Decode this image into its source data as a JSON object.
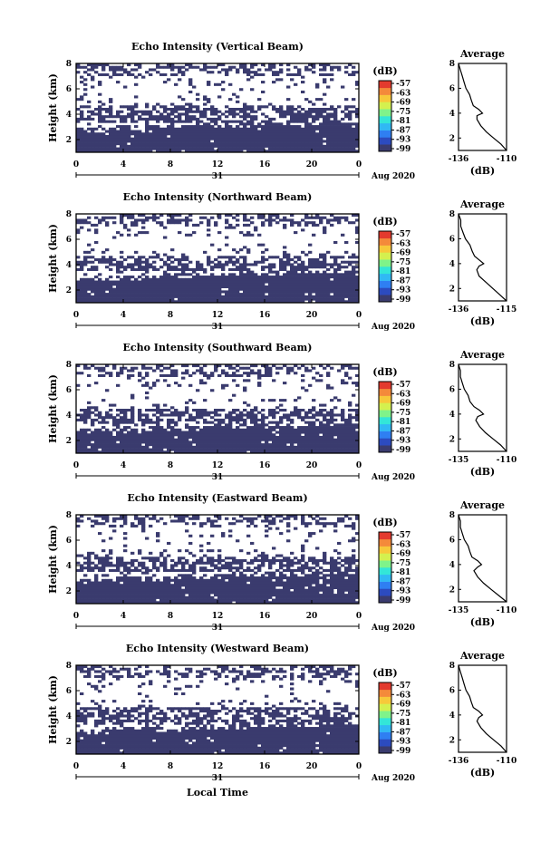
{
  "colors": {
    "echo_fill": "#3a3b6e",
    "background": "#ffffff",
    "colorbar": [
      "#3a3b6e",
      "#2c4bbf",
      "#2f7ff2",
      "#30b9f4",
      "#33e6d8",
      "#7ff38a",
      "#d4f04f",
      "#f7c93a",
      "#f48a3a",
      "#e33a2e"
    ]
  },
  "shared": {
    "colorbar_unit": "(dB)",
    "colorbar_ticks": [
      "-57",
      "-63",
      "-69",
      "-75",
      "-81",
      "-87",
      "-93",
      "-99"
    ],
    "ylabel": "Height (km)",
    "y_ticks": [
      "2",
      "4",
      "6",
      "8"
    ],
    "x_ticks": [
      "0",
      "4",
      "8",
      "12",
      "16",
      "20",
      "0"
    ],
    "date_day": "31",
    "date_month": "Aug 2020",
    "avg_title": "Average",
    "avg_xlabel": "(dB)",
    "xlabel_bottom": "Local Time"
  },
  "chart_data": [
    {
      "type": "heatmap",
      "title": "Echo Intensity (Vertical Beam)",
      "x_range_hours": [
        0,
        24
      ],
      "ylim": [
        1,
        8
      ],
      "profile": {
        "xlim": [
          -136,
          -110
        ],
        "x_ticks": [
          "-136",
          "-110"
        ],
        "height": [
          1.0,
          1.5,
          2.0,
          2.5,
          3.0,
          3.5,
          3.8,
          4.0,
          4.3,
          4.6,
          5.0,
          5.5,
          6.0,
          6.5,
          7.0,
          7.5,
          8.0
        ],
        "value": [
          -110,
          -113,
          -117,
          -121,
          -124,
          -126,
          -126,
          -123,
          -125,
          -128,
          -129,
          -130,
          -132,
          -133,
          -134,
          -135,
          -136
        ]
      }
    },
    {
      "type": "heatmap",
      "title": "Echo Intensity (Northward Beam)",
      "x_range_hours": [
        0,
        24
      ],
      "ylim": [
        1,
        8
      ],
      "profile": {
        "xlim": [
          -136,
          -115
        ],
        "x_ticks": [
          "-136",
          "-115"
        ],
        "height": [
          1.0,
          1.5,
          2.0,
          2.5,
          3.0,
          3.5,
          3.8,
          4.0,
          4.3,
          4.6,
          5.0,
          5.5,
          6.0,
          6.5,
          7.0,
          7.5,
          8.0
        ],
        "value": [
          -115,
          -118,
          -121,
          -124,
          -127,
          -128,
          -127,
          -125,
          -127,
          -129,
          -130,
          -131,
          -133,
          -134,
          -135,
          -135,
          -136
        ]
      }
    },
    {
      "type": "heatmap",
      "title": "Echo Intensity (Southward Beam)",
      "x_range_hours": [
        0,
        24
      ],
      "ylim": [
        1,
        8
      ],
      "profile": {
        "xlim": [
          -135,
          -110
        ],
        "x_ticks": [
          "-135",
          "-110"
        ],
        "height": [
          1.0,
          1.5,
          2.0,
          2.5,
          3.0,
          3.5,
          3.8,
          4.0,
          4.3,
          4.6,
          5.0,
          5.5,
          6.0,
          6.5,
          7.0,
          7.5,
          8.0
        ],
        "value": [
          -110,
          -113,
          -117,
          -121,
          -124,
          -126,
          -125,
          -122,
          -124,
          -127,
          -129,
          -130,
          -132,
          -133,
          -134,
          -134,
          -135
        ]
      }
    },
    {
      "type": "heatmap",
      "title": "Echo Intensity (Eastward Beam)",
      "x_range_hours": [
        0,
        24
      ],
      "ylim": [
        1,
        8
      ],
      "profile": {
        "xlim": [
          -135,
          -110
        ],
        "x_ticks": [
          "-135",
          "-110"
        ],
        "height": [
          1.0,
          1.5,
          2.0,
          2.5,
          3.0,
          3.5,
          3.8,
          4.0,
          4.3,
          4.6,
          5.0,
          5.5,
          6.0,
          6.5,
          7.0,
          7.5,
          8.0
        ],
        "value": [
          -110,
          -114,
          -118,
          -122,
          -125,
          -127,
          -125,
          -123,
          -125,
          -128,
          -129,
          -130,
          -132,
          -133,
          -134,
          -134,
          -135
        ]
      }
    },
    {
      "type": "heatmap",
      "title": "Echo Intensity (Westward Beam)",
      "x_range_hours": [
        0,
        24
      ],
      "ylim": [
        1,
        8
      ],
      "profile": {
        "xlim": [
          -136,
          -110
        ],
        "x_ticks": [
          "-136",
          "-110"
        ],
        "height": [
          1.0,
          1.5,
          2.0,
          2.5,
          3.0,
          3.5,
          3.8,
          4.0,
          4.3,
          4.6,
          5.0,
          5.5,
          6.0,
          6.5,
          7.0,
          7.5,
          8.0
        ],
        "value": [
          -110,
          -113,
          -117,
          -121,
          -124,
          -126,
          -125,
          -123,
          -125,
          -128,
          -129,
          -130,
          -132,
          -133,
          -134,
          -135,
          -136
        ]
      }
    }
  ]
}
